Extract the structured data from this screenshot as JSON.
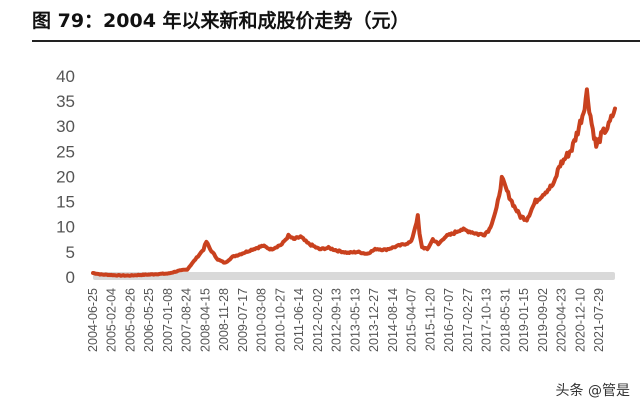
{
  "header": {
    "title": "图 79：2004 年以来新和成股价走势（元）"
  },
  "watermark": "头条 @管是",
  "colors": {
    "line": "#C9411E",
    "baseline_band": "#D9D9D9",
    "axis_text": "#555555"
  },
  "chart_data": {
    "type": "line",
    "title": "图 79：2004 年以来新和成股价走势（元）",
    "xlabel": "",
    "ylabel": "元",
    "ylim": [
      0,
      40
    ],
    "yticks": [
      0,
      5,
      10,
      15,
      20,
      25,
      30,
      35,
      40
    ],
    "grid": false,
    "legend": null,
    "categories": [
      "2004-06-25",
      "2005-02-04",
      "2005-09-26",
      "2006-05-25",
      "2007-01-08",
      "2007-08-24",
      "2008-04-15",
      "2008-11-28",
      "2009-07-17",
      "2010-03-08",
      "2010-10-27",
      "2011-06-14",
      "2012-02-02",
      "2012-09-13",
      "2013-05-13",
      "2013-12-27",
      "2014-08-14",
      "2015-04-07",
      "2015-11-20",
      "2016-07-07",
      "2017-02-27",
      "2017-10-13",
      "2018-05-31",
      "2019-01-15",
      "2019-09-02",
      "2020-04-23",
      "2020-12-10",
      "2021-07-29"
    ],
    "series": [
      {
        "name": "新和成股价",
        "x": [
          "2004-06-25",
          "2004-10-01",
          "2005-02-04",
          "2005-06-01",
          "2005-09-26",
          "2006-01-15",
          "2006-05-25",
          "2006-09-15",
          "2007-01-08",
          "2007-05-01",
          "2007-08-24",
          "2007-12-01",
          "2008-01-20",
          "2008-03-10",
          "2008-04-15",
          "2008-06-01",
          "2008-09-01",
          "2008-11-28",
          "2009-03-01",
          "2009-07-17",
          "2009-11-01",
          "2010-03-08",
          "2010-06-15",
          "2010-10-27",
          "2011-01-15",
          "2011-03-20",
          "2011-06-14",
          "2011-09-01",
          "2012-02-02",
          "2012-05-20",
          "2012-09-13",
          "2013-01-15",
          "2013-05-13",
          "2013-09-01",
          "2013-12-27",
          "2014-04-15",
          "2014-08-14",
          "2014-12-01",
          "2015-03-01",
          "2015-05-20",
          "2015-06-10",
          "2015-07-10",
          "2015-09-15",
          "2015-11-20",
          "2016-01-28",
          "2016-04-15",
          "2016-07-07",
          "2016-11-01",
          "2017-02-27",
          "2017-06-01",
          "2017-08-15",
          "2017-10-13",
          "2018-01-10",
          "2018-03-15",
          "2018-05-31",
          "2018-08-15",
          "2018-10-30",
          "2019-01-15",
          "2019-05-01",
          "2019-09-02",
          "2019-12-15",
          "2020-02-15",
          "2020-04-23",
          "2020-07-20",
          "2020-10-01",
          "2020-12-10",
          "2021-01-20",
          "2021-03-20",
          "2021-05-15",
          "2021-07-29",
          "2021-10-15",
          "2021-12-31"
        ],
        "values": [
          0.8,
          0.5,
          0.4,
          0.3,
          0.3,
          0.4,
          0.5,
          0.6,
          0.7,
          1.2,
          1.5,
          3.5,
          4.5,
          5.5,
          7.0,
          5.5,
          3.5,
          2.8,
          4.0,
          4.8,
          5.5,
          6.2,
          5.5,
          6.5,
          8.2,
          7.5,
          8.0,
          6.8,
          5.5,
          5.8,
          5.2,
          4.8,
          5.0,
          4.6,
          5.6,
          5.4,
          6.0,
          6.5,
          7.0,
          12.0,
          8.5,
          6.0,
          5.5,
          7.5,
          6.5,
          8.0,
          8.5,
          9.5,
          9.0,
          8.5,
          8.5,
          9.5,
          13.5,
          19.5,
          16.5,
          14.0,
          12.0,
          11.5,
          15.0,
          17.0,
          18.5,
          22.0,
          23.5,
          25.5,
          29.0,
          33.0,
          36.8,
          30.5,
          26.0,
          28.5,
          30.0,
          33.5
        ]
      }
    ]
  }
}
